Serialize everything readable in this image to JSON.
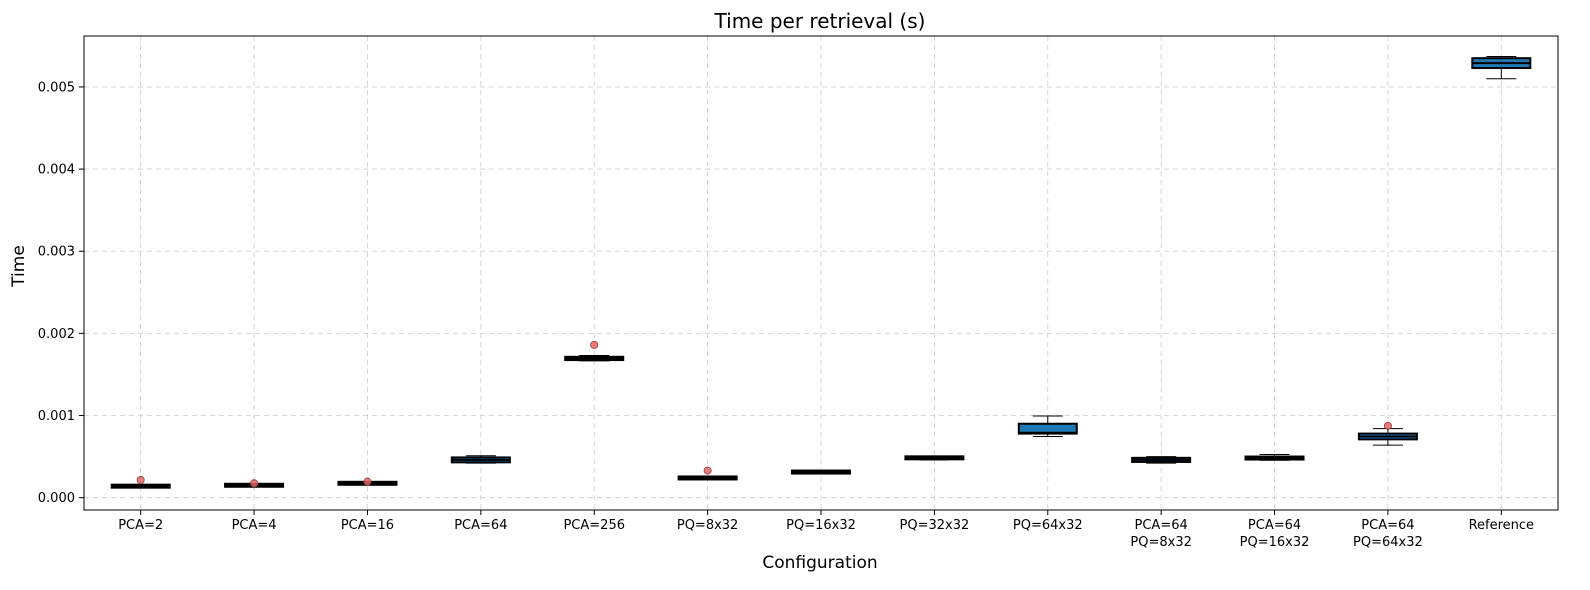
{
  "chart_data": {
    "type": "box",
    "title": "Time per retrieval (s)",
    "xlabel": "Configuration",
    "ylabel": "Time",
    "ylim": [
      -0.00015,
      0.00562
    ],
    "yticks": [
      "0.000",
      "0.001",
      "0.002",
      "0.003",
      "0.004",
      "0.005"
    ],
    "ytick_values": [
      0,
      0.001,
      0.002,
      0.003,
      0.004,
      0.005
    ],
    "grid": true,
    "box_color": "#1f77b4",
    "median_color": "#000000",
    "flier_color": "#e06666",
    "categories": [
      [
        "PCA=2"
      ],
      [
        "PCA=4"
      ],
      [
        "PCA=16"
      ],
      [
        "PCA=64"
      ],
      [
        "PCA=256"
      ],
      [
        "PQ=8x32"
      ],
      [
        "PQ=16x32"
      ],
      [
        "PQ=32x32"
      ],
      [
        "PQ=64x32"
      ],
      [
        "PCA=64",
        "PQ=8x32"
      ],
      [
        "PCA=64",
        "PQ=16x32"
      ],
      [
        "PCA=64",
        "PQ=64x32"
      ],
      [
        "Reference"
      ]
    ],
    "boxes": [
      {
        "min": 0.000125,
        "q1": 0.00013,
        "median": 0.00014,
        "q3": 0.00015,
        "max": 0.00016,
        "outliers": [
          0.000215
        ]
      },
      {
        "min": 0.000138,
        "q1": 0.000142,
        "median": 0.00015,
        "q3": 0.00016,
        "max": 0.000168,
        "outliers": [
          0.000175
        ]
      },
      {
        "min": 0.00016,
        "q1": 0.000165,
        "median": 0.000175,
        "q3": 0.000185,
        "max": 0.00019,
        "outliers": [
          0.000195
        ]
      },
      {
        "min": 0.00042,
        "q1": 0.00043,
        "median": 0.00046,
        "q3": 0.00049,
        "max": 0.00051,
        "outliers": []
      },
      {
        "min": 0.001665,
        "q1": 0.001675,
        "median": 0.001695,
        "q3": 0.001715,
        "max": 0.00173,
        "outliers": [
          0.00186
        ]
      },
      {
        "min": 0.000232,
        "q1": 0.000235,
        "median": 0.00024,
        "q3": 0.000245,
        "max": 0.000248,
        "outliers": [
          0.00033
        ]
      },
      {
        "min": 0.000305,
        "q1": 0.000308,
        "median": 0.000312,
        "q3": 0.000316,
        "max": 0.00032,
        "outliers": []
      },
      {
        "min": 0.00046,
        "q1": 0.000475,
        "median": 0.000485,
        "q3": 0.000495,
        "max": 0.000505,
        "outliers": []
      },
      {
        "min": 0.000745,
        "q1": 0.00078,
        "median": 0.00079,
        "q3": 0.0009,
        "max": 0.000995,
        "outliers": []
      },
      {
        "min": 0.00042,
        "q1": 0.000435,
        "median": 0.00046,
        "q3": 0.000485,
        "max": 0.0005,
        "outliers": []
      },
      {
        "min": 0.000455,
        "q1": 0.000465,
        "median": 0.00048,
        "q3": 0.0005,
        "max": 0.000525,
        "outliers": []
      },
      {
        "min": 0.00064,
        "q1": 0.00071,
        "median": 0.000745,
        "q3": 0.00078,
        "max": 0.00084,
        "outliers": [
          0.000875
        ]
      },
      {
        "min": 0.0051,
        "q1": 0.00523,
        "median": 0.00529,
        "q3": 0.00535,
        "max": 0.00537,
        "outliers": []
      }
    ]
  }
}
